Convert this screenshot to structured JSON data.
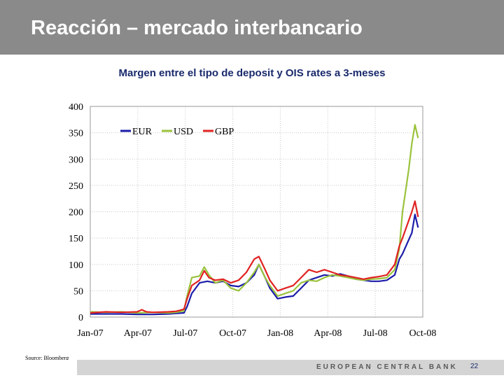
{
  "slide": {
    "title": "Reacción – mercado interbancario",
    "source": "Source: Bloomberg",
    "footer": "EUROPEAN CENTRAL BANK",
    "page_number": "22"
  },
  "chart_data": {
    "type": "line",
    "title": "Margen entre el tipo de deposit y OIS rates a 3-meses",
    "xlabel": "",
    "ylabel": "",
    "ylim": [
      0,
      400
    ],
    "yticks": [
      0,
      50,
      100,
      150,
      200,
      250,
      300,
      350,
      400
    ],
    "xticks": [
      "Jan-07",
      "Apr-07",
      "Jul-07",
      "Oct-07",
      "Jan-08",
      "Apr-08",
      "Jul-08",
      "Oct-08"
    ],
    "xlim": [
      0,
      21.3
    ],
    "grid": true,
    "legend_position": "top-left",
    "series": [
      {
        "name": "EUR",
        "color": "#1c1caa",
        "points": [
          [
            0,
            6
          ],
          [
            1,
            6
          ],
          [
            2,
            6
          ],
          [
            3,
            5
          ],
          [
            4,
            5
          ],
          [
            5,
            6
          ],
          [
            5.5,
            7
          ],
          [
            6,
            8
          ],
          [
            6.2,
            20
          ],
          [
            6.5,
            45
          ],
          [
            7,
            65
          ],
          [
            7.5,
            68
          ],
          [
            8,
            65
          ],
          [
            8.5,
            68
          ],
          [
            9,
            60
          ],
          [
            9.5,
            58
          ],
          [
            10,
            65
          ],
          [
            10.5,
            80
          ],
          [
            10.8,
            100
          ],
          [
            11.2,
            75
          ],
          [
            11.5,
            55
          ],
          [
            12,
            35
          ],
          [
            12.5,
            38
          ],
          [
            13,
            40
          ],
          [
            13.5,
            55
          ],
          [
            14,
            70
          ],
          [
            14.5,
            75
          ],
          [
            15,
            80
          ],
          [
            15.5,
            78
          ],
          [
            16,
            82
          ],
          [
            16.5,
            78
          ],
          [
            17,
            72
          ],
          [
            17.5,
            70
          ],
          [
            18,
            68
          ],
          [
            18.5,
            68
          ],
          [
            19,
            70
          ],
          [
            19.5,
            80
          ],
          [
            19.8,
            110
          ],
          [
            20,
            120
          ],
          [
            20.3,
            140
          ],
          [
            20.6,
            160
          ],
          [
            20.8,
            195
          ],
          [
            21,
            170
          ]
        ]
      },
      {
        "name": "USD",
        "color": "#9ac33c",
        "points": [
          [
            0,
            10
          ],
          [
            1,
            9
          ],
          [
            2,
            10
          ],
          [
            3,
            8
          ],
          [
            4,
            9
          ],
          [
            5,
            8
          ],
          [
            5.5,
            9
          ],
          [
            6,
            12
          ],
          [
            6.2,
            40
          ],
          [
            6.5,
            75
          ],
          [
            7,
            78
          ],
          [
            7.3,
            95
          ],
          [
            7.6,
            80
          ],
          [
            8,
            65
          ],
          [
            8.5,
            70
          ],
          [
            9,
            55
          ],
          [
            9.5,
            50
          ],
          [
            10,
            65
          ],
          [
            10.5,
            85
          ],
          [
            10.8,
            100
          ],
          [
            11.2,
            75
          ],
          [
            11.5,
            60
          ],
          [
            12,
            40
          ],
          [
            12.5,
            45
          ],
          [
            13,
            50
          ],
          [
            13.5,
            65
          ],
          [
            14,
            70
          ],
          [
            14.5,
            68
          ],
          [
            15,
            75
          ],
          [
            15.5,
            80
          ],
          [
            16,
            78
          ],
          [
            16.5,
            75
          ],
          [
            17,
            72
          ],
          [
            17.5,
            70
          ],
          [
            18,
            72
          ],
          [
            18.5,
            73
          ],
          [
            19,
            75
          ],
          [
            19.5,
            90
          ],
          [
            19.8,
            130
          ],
          [
            20,
            200
          ],
          [
            20.2,
            240
          ],
          [
            20.4,
            280
          ],
          [
            20.6,
            330
          ],
          [
            20.8,
            365
          ],
          [
            21,
            340
          ]
        ]
      },
      {
        "name": "GBP",
        "color": "#e02222",
        "points": [
          [
            0,
            8
          ],
          [
            1,
            10
          ],
          [
            2,
            9
          ],
          [
            3,
            10
          ],
          [
            3.3,
            14
          ],
          [
            3.6,
            10
          ],
          [
            4,
            9
          ],
          [
            5,
            10
          ],
          [
            5.5,
            11
          ],
          [
            6,
            15
          ],
          [
            6.2,
            35
          ],
          [
            6.5,
            60
          ],
          [
            7,
            70
          ],
          [
            7.3,
            88
          ],
          [
            7.6,
            75
          ],
          [
            8,
            70
          ],
          [
            8.5,
            72
          ],
          [
            9,
            65
          ],
          [
            9.5,
            70
          ],
          [
            10,
            85
          ],
          [
            10.5,
            110
          ],
          [
            10.8,
            115
          ],
          [
            11.2,
            90
          ],
          [
            11.5,
            70
          ],
          [
            12,
            50
          ],
          [
            12.5,
            55
          ],
          [
            13,
            60
          ],
          [
            13.5,
            75
          ],
          [
            14,
            90
          ],
          [
            14.5,
            85
          ],
          [
            15,
            90
          ],
          [
            15.5,
            85
          ],
          [
            16,
            80
          ],
          [
            16.5,
            78
          ],
          [
            17,
            75
          ],
          [
            17.5,
            72
          ],
          [
            18,
            75
          ],
          [
            18.5,
            77
          ],
          [
            19,
            80
          ],
          [
            19.5,
            100
          ],
          [
            19.8,
            135
          ],
          [
            20,
            150
          ],
          [
            20.3,
            175
          ],
          [
            20.6,
            200
          ],
          [
            20.8,
            220
          ],
          [
            21,
            190
          ]
        ]
      }
    ]
  }
}
